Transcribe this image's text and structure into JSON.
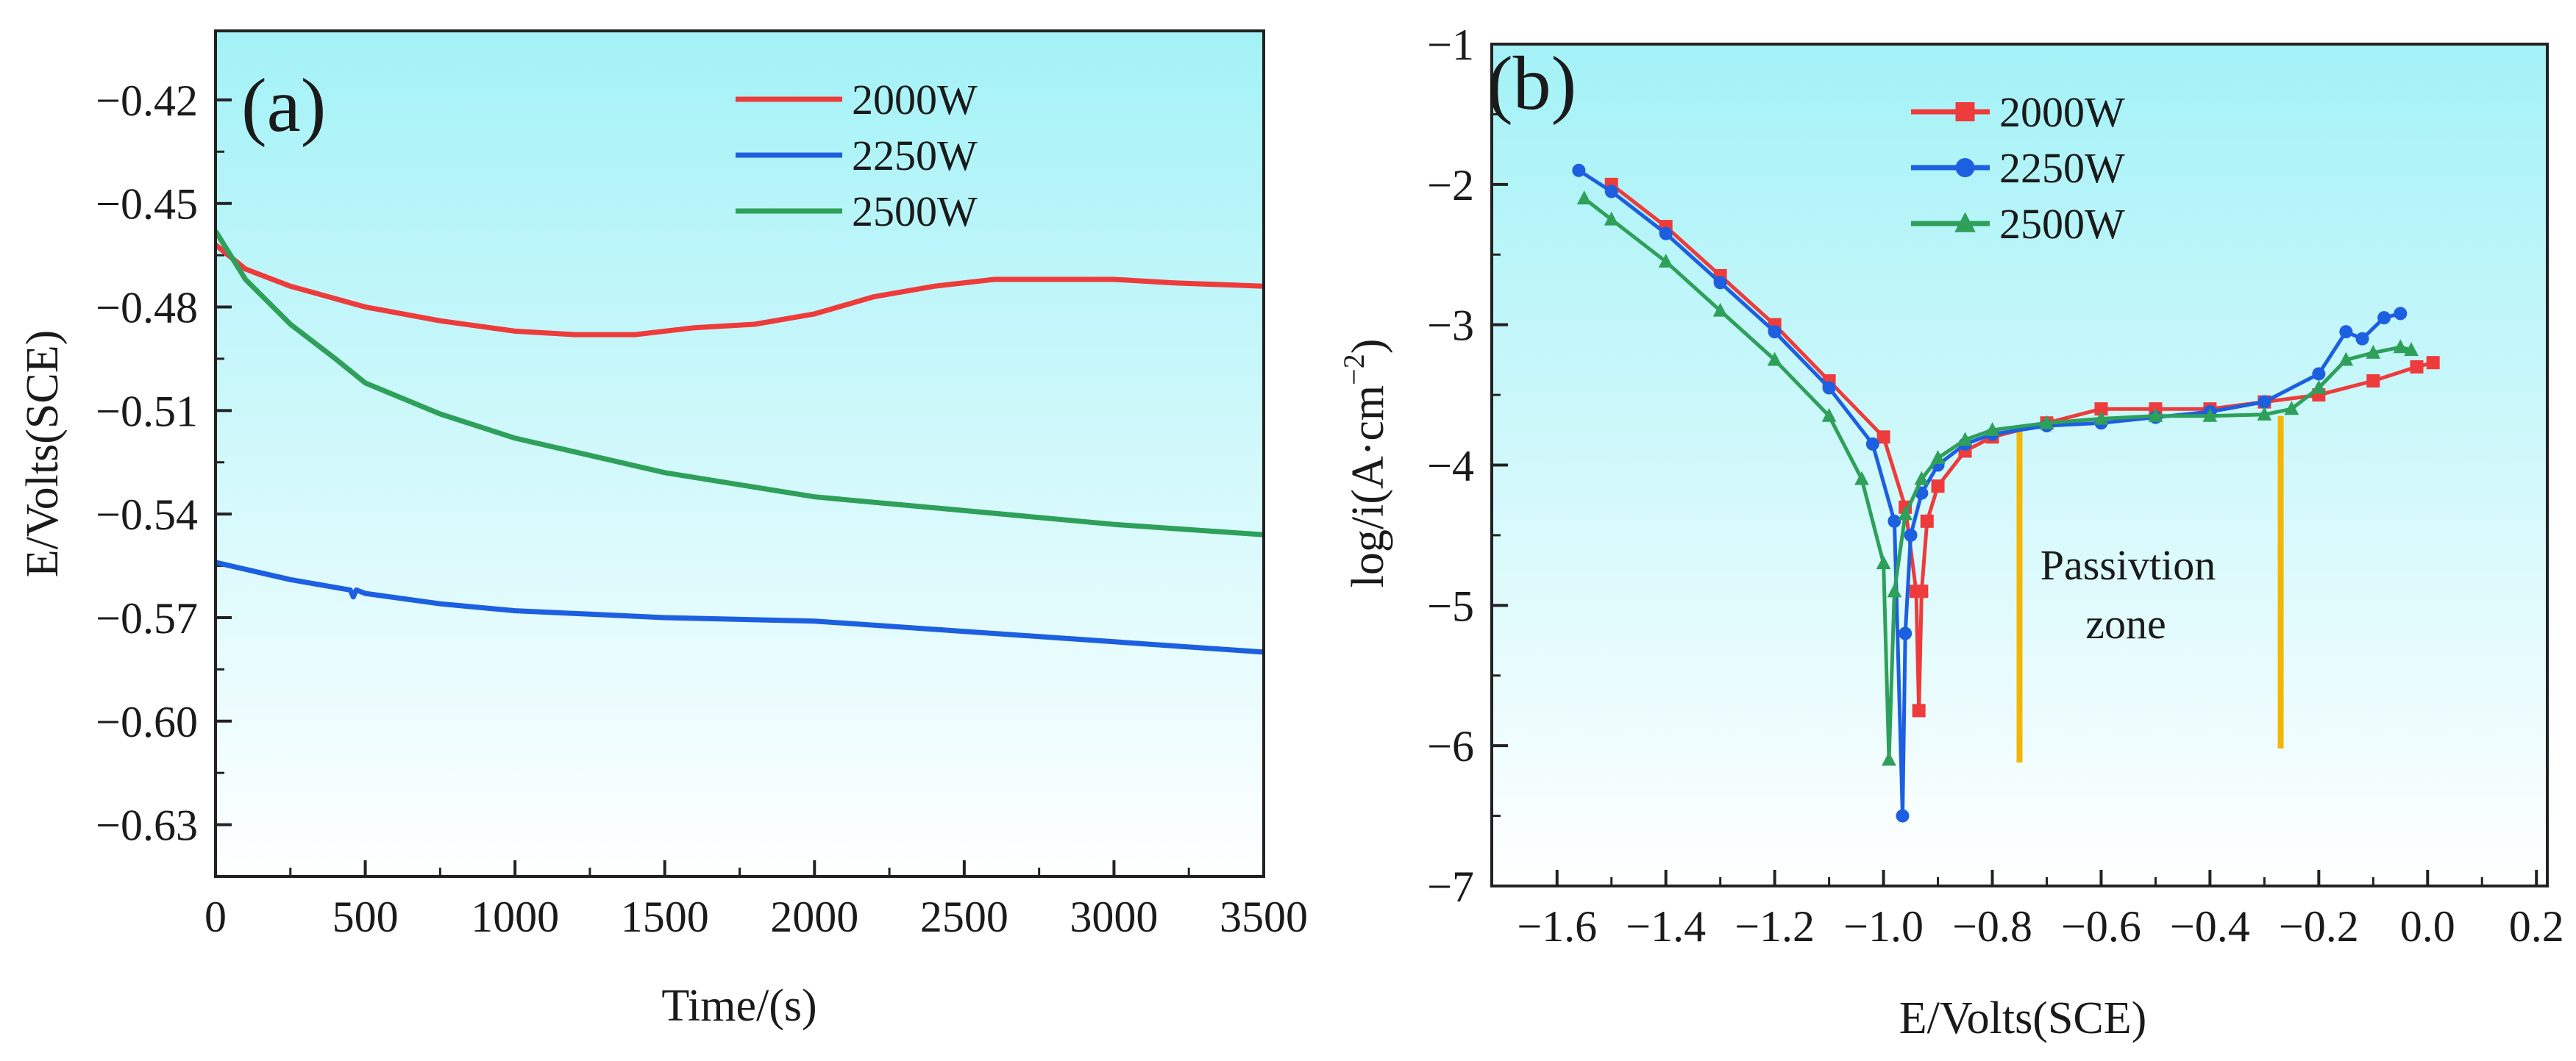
{
  "chart_data": [
    {
      "panel": "(a)",
      "type": "line",
      "xlabel": "Time/(s)",
      "ylabel": "E/Volts(SCE)",
      "xlim": [
        0,
        3500
      ],
      "ylim": [
        -0.645,
        -0.4
      ],
      "xticks": [
        0,
        500,
        1000,
        1500,
        2000,
        2500,
        3000,
        3500
      ],
      "yticks": [
        -0.42,
        -0.45,
        -0.48,
        -0.51,
        -0.54,
        -0.57,
        -0.6,
        -0.63
      ],
      "xtick_labels": [
        "0",
        "500",
        "1000",
        "1500",
        "2000",
        "2500",
        "3000",
        "3500"
      ],
      "ytick_labels": [
        "−0.42",
        "−0.45",
        "−0.48",
        "−0.51",
        "−0.54",
        "−0.57",
        "−0.60",
        "−0.63"
      ],
      "legend_position": "top-right",
      "series": [
        {
          "name": "2000W",
          "color": "#ee3b3b",
          "x": [
            0,
            100,
            250,
            500,
            750,
            1000,
            1200,
            1400,
            1600,
            1800,
            2000,
            2200,
            2400,
            2600,
            2800,
            3000,
            3200,
            3500
          ],
          "y": [
            -0.462,
            -0.469,
            -0.474,
            -0.48,
            -0.484,
            -0.487,
            -0.488,
            -0.488,
            -0.486,
            -0.485,
            -0.482,
            -0.477,
            -0.474,
            -0.472,
            -0.472,
            -0.472,
            -0.473,
            -0.474
          ]
        },
        {
          "name": "2250W",
          "color": "#1c5fe0",
          "x": [
            0,
            250,
            450,
            460,
            470,
            500,
            750,
            1000,
            1250,
            1500,
            2000,
            2500,
            3000,
            3500
          ],
          "y": [
            -0.554,
            -0.559,
            -0.562,
            -0.564,
            -0.562,
            -0.563,
            -0.566,
            -0.568,
            -0.569,
            -0.57,
            -0.571,
            -0.574,
            -0.577,
            -0.58
          ]
        },
        {
          "name": "2500W",
          "color": "#2ea05a",
          "x": [
            0,
            100,
            250,
            400,
            500,
            750,
            1000,
            1250,
            1500,
            2000,
            2500,
            3000,
            3500
          ],
          "y": [
            -0.458,
            -0.472,
            -0.485,
            -0.495,
            -0.502,
            -0.511,
            -0.518,
            -0.523,
            -0.528,
            -0.535,
            -0.539,
            -0.543,
            -0.546
          ]
        }
      ]
    },
    {
      "panel": "(b)",
      "type": "line",
      "xlabel": "E/Volts(SCE)",
      "ylabel_main": "log/i(A·cm",
      "ylabel_exp": "−2",
      "ylabel_close": ")",
      "xlim": [
        -1.72,
        0.22
      ],
      "ylim": [
        -7,
        -1
      ],
      "xticks": [
        -1.6,
        -1.4,
        -1.2,
        -1.0,
        -0.8,
        -0.6,
        -0.4,
        -0.2,
        0.0,
        0.2
      ],
      "yticks": [
        -1,
        -2,
        -3,
        -4,
        -5,
        -6,
        -7
      ],
      "xtick_labels": [
        "−1.6",
        "−1.4",
        "−1.2",
        "−1.0",
        "−0.8",
        "−0.6",
        "−0.4",
        "−0.2",
        "0.0",
        "0.2"
      ],
      "ytick_labels": [
        "−1",
        "−2",
        "−3",
        "−4",
        "−5",
        "−6",
        "−7"
      ],
      "legend_position": "top-center",
      "annotation": {
        "line1": "Passivtion",
        "line2": "zone",
        "lines_at": [
          -0.75,
          -0.27
        ],
        "line_color": "#f2b705"
      },
      "series": [
        {
          "name": "2000W",
          "color": "#ee3b3b",
          "marker": "square",
          "x": [
            -1.5,
            -1.4,
            -1.3,
            -1.2,
            -1.1,
            -1.0,
            -0.96,
            -0.94,
            -0.935,
            -0.93,
            -0.92,
            -0.9,
            -0.85,
            -0.8,
            -0.7,
            -0.6,
            -0.5,
            -0.4,
            -0.3,
            -0.2,
            -0.1,
            -0.02,
            0.01
          ],
          "y": [
            -2.0,
            -2.3,
            -2.65,
            -3.0,
            -3.4,
            -3.8,
            -4.3,
            -4.9,
            -5.75,
            -4.9,
            -4.4,
            -4.15,
            -3.9,
            -3.8,
            -3.7,
            -3.6,
            -3.6,
            -3.6,
            -3.55,
            -3.5,
            -3.4,
            -3.3,
            -3.27
          ]
        },
        {
          "name": "2250W",
          "color": "#1c5fe0",
          "marker": "circle",
          "x": [
            -1.56,
            -1.5,
            -1.4,
            -1.3,
            -1.2,
            -1.1,
            -1.02,
            -0.98,
            -0.965,
            -0.96,
            -0.95,
            -0.93,
            -0.9,
            -0.85,
            -0.8,
            -0.7,
            -0.6,
            -0.5,
            -0.4,
            -0.3,
            -0.2,
            -0.15,
            -0.12,
            -0.08,
            -0.05
          ],
          "y": [
            -1.9,
            -2.05,
            -2.35,
            -2.7,
            -3.05,
            -3.45,
            -3.85,
            -4.4,
            -6.5,
            -5.2,
            -4.5,
            -4.2,
            -4.0,
            -3.85,
            -3.78,
            -3.72,
            -3.7,
            -3.66,
            -3.62,
            -3.55,
            -3.35,
            -3.05,
            -3.1,
            -2.95,
            -2.92
          ]
        },
        {
          "name": "2500W",
          "color": "#2ea05a",
          "marker": "triangle",
          "x": [
            -1.55,
            -1.5,
            -1.4,
            -1.3,
            -1.2,
            -1.1,
            -1.04,
            -1.0,
            -0.99,
            -0.98,
            -0.96,
            -0.93,
            -0.9,
            -0.85,
            -0.8,
            -0.7,
            -0.6,
            -0.5,
            -0.4,
            -0.3,
            -0.25,
            -0.2,
            -0.15,
            -0.1,
            -0.05,
            -0.03
          ],
          "y": [
            -2.1,
            -2.25,
            -2.55,
            -2.9,
            -3.25,
            -3.65,
            -4.1,
            -4.7,
            -6.1,
            -4.9,
            -4.35,
            -4.1,
            -3.95,
            -3.82,
            -3.75,
            -3.7,
            -3.67,
            -3.65,
            -3.65,
            -3.64,
            -3.6,
            -3.45,
            -3.25,
            -3.2,
            -3.16,
            -3.18
          ]
        }
      ]
    }
  ]
}
